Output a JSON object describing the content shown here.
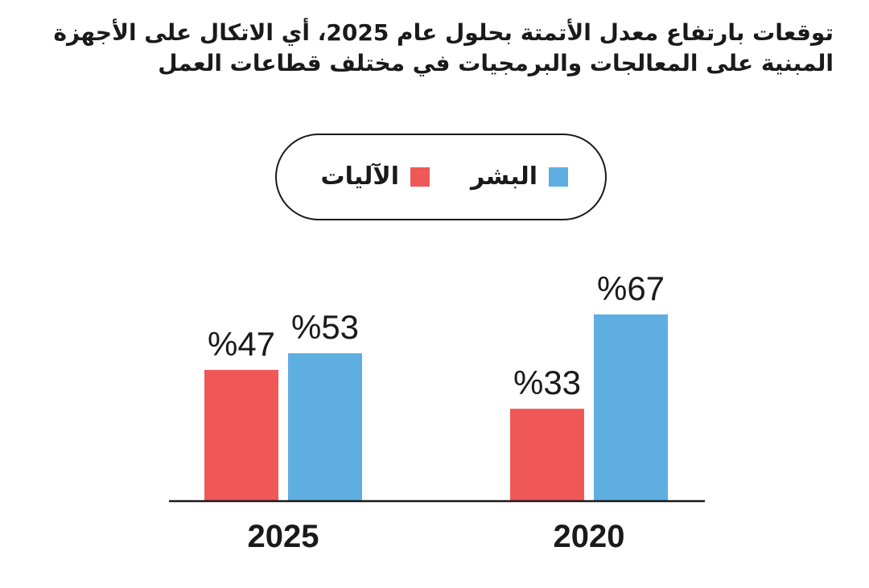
{
  "title": "توقعات بارتفاع معدل الأتمتة بحلول عام 2025، أي الاتكال على الأجهزة المبنية على المعالجات والبرمجيات في مختلف قطاعات العمل",
  "colors": {
    "human": "#5eaee2",
    "machine": "#ef5857",
    "axis": "#1a1a1a"
  },
  "chart_data": {
    "type": "bar",
    "title": "توقعات بارتفاع معدل الأتمتة بحلول عام 2025، أي الاتكال على الأجهزة المبنية على المعالجات والبرمجيات في مختلف قطاعات العمل",
    "categories": [
      "2025",
      "2020"
    ],
    "series": [
      {
        "name": "الآليات",
        "color": "#ef5857",
        "values": [
          47,
          33
        ],
        "labels": [
          "%47",
          "%33"
        ]
      },
      {
        "name": "البشر",
        "color": "#5eaee2",
        "values": [
          53,
          67
        ],
        "labels": [
          "%53",
          "%67"
        ]
      }
    ],
    "ylim": [
      0,
      70
    ],
    "grid": false,
    "legend_position": "top-center",
    "xlabel": "",
    "ylabel": ""
  }
}
